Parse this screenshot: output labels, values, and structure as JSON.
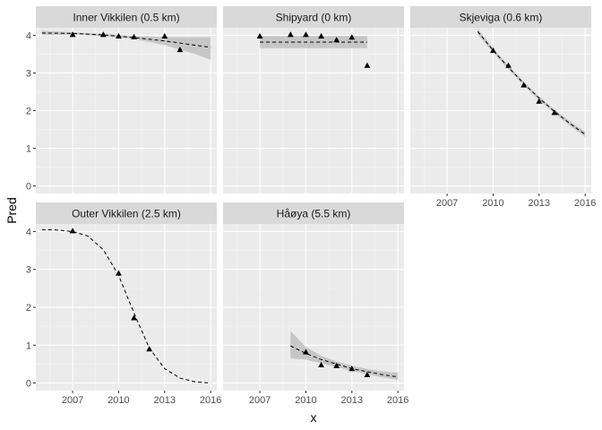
{
  "chart_data": {
    "type": "scatter",
    "facet": "wrap",
    "xlabel": "x",
    "ylabel": "Pred",
    "xlim": [
      2004.6,
      2016.4
    ],
    "ylim": [
      -0.2,
      4.2
    ],
    "x_ticks": [
      2007,
      2010,
      2013,
      2016
    ],
    "x_tick_labels": [
      "2007",
      "2010",
      "2013",
      "2016"
    ],
    "y_ticks": [
      0,
      1,
      2,
      3,
      4
    ],
    "y_tick_labels": [
      "0",
      "1",
      "2",
      "3",
      "4"
    ],
    "colors": {
      "panel_bg": "#ebebeb",
      "strip_bg": "#d9d9d9",
      "grid_major": "#ffffff",
      "ribbon": "#bfbfbf",
      "line": "#000000",
      "point": "#000000"
    },
    "panels": [
      {
        "name": "Inner Vikkilen (0.5 km)",
        "points": [
          [
            2007,
            4.02
          ],
          [
            2009,
            4.02
          ],
          [
            2010,
            3.98
          ],
          [
            2011,
            3.96
          ],
          [
            2013,
            3.98
          ],
          [
            2014,
            3.62
          ]
        ],
        "fit": [
          [
            2005,
            4.06
          ],
          [
            2007,
            4.05
          ],
          [
            2009,
            4.01
          ],
          [
            2011,
            3.94
          ],
          [
            2013,
            3.85
          ],
          [
            2016,
            3.68
          ]
        ],
        "ribbon_upper": [
          [
            2005,
            4.12
          ],
          [
            2007,
            4.08
          ],
          [
            2009,
            4.04
          ],
          [
            2011,
            3.98
          ],
          [
            2013,
            3.95
          ],
          [
            2015,
            3.95
          ],
          [
            2016,
            3.95
          ]
        ],
        "ribbon_lower": [
          [
            2005,
            4.0
          ],
          [
            2007,
            4.02
          ],
          [
            2009,
            3.98
          ],
          [
            2011,
            3.9
          ],
          [
            2013,
            3.74
          ],
          [
            2015,
            3.5
          ],
          [
            2016,
            3.35
          ]
        ]
      },
      {
        "name": "Shipyard (0 km)",
        "points": [
          [
            2007,
            3.98
          ],
          [
            2009,
            4.02
          ],
          [
            2010,
            4.02
          ],
          [
            2011,
            3.98
          ],
          [
            2012,
            3.88
          ],
          [
            2013,
            3.95
          ],
          [
            2014,
            3.2
          ]
        ],
        "fit": [
          [
            2007,
            3.82
          ],
          [
            2014,
            3.82
          ]
        ],
        "ribbon_upper": [
          [
            2007,
            3.98
          ],
          [
            2014,
            3.98
          ]
        ],
        "ribbon_lower": [
          [
            2007,
            3.66
          ],
          [
            2014,
            3.66
          ]
        ]
      },
      {
        "name": "Skjeviga (0.6 km)",
        "points": [
          [
            2010,
            3.6
          ],
          [
            2011,
            3.2
          ],
          [
            2012,
            2.68
          ],
          [
            2013,
            2.25
          ],
          [
            2014,
            1.95
          ]
        ],
        "fit": [
          [
            2009,
            4.1
          ],
          [
            2010,
            3.6
          ],
          [
            2011,
            3.15
          ],
          [
            2012,
            2.72
          ],
          [
            2013,
            2.33
          ],
          [
            2014,
            1.98
          ],
          [
            2015,
            1.66
          ],
          [
            2016,
            1.37
          ]
        ],
        "ribbon_upper": [
          [
            2009,
            4.18
          ],
          [
            2010,
            3.66
          ],
          [
            2011,
            3.2
          ],
          [
            2012,
            2.77
          ],
          [
            2013,
            2.38
          ],
          [
            2014,
            2.03
          ],
          [
            2015,
            1.72
          ],
          [
            2016,
            1.44
          ]
        ],
        "ribbon_lower": [
          [
            2009,
            4.02
          ],
          [
            2010,
            3.54
          ],
          [
            2011,
            3.1
          ],
          [
            2012,
            2.67
          ],
          [
            2013,
            2.28
          ],
          [
            2014,
            1.93
          ],
          [
            2015,
            1.6
          ],
          [
            2016,
            1.3
          ]
        ]
      },
      {
        "name": "Outer Vikkilen (2.5 km)",
        "points": [
          [
            2007,
            4.02
          ],
          [
            2010,
            2.9
          ],
          [
            2011,
            1.72
          ],
          [
            2012,
            0.9
          ]
        ],
        "fit": [
          [
            2005,
            4.05
          ],
          [
            2006,
            4.04
          ],
          [
            2007,
            4.0
          ],
          [
            2008,
            3.88
          ],
          [
            2009,
            3.52
          ],
          [
            2010,
            2.84
          ],
          [
            2011,
            1.85
          ],
          [
            2012,
            0.92
          ],
          [
            2013,
            0.38
          ],
          [
            2014,
            0.13
          ],
          [
            2015,
            0.03
          ],
          [
            2016,
            0.0
          ]
        ],
        "ribbon_upper": [],
        "ribbon_lower": []
      },
      {
        "name": "Håøya (5.5 km)",
        "points": [
          [
            2010,
            0.82
          ],
          [
            2011,
            0.48
          ],
          [
            2012,
            0.46
          ],
          [
            2013,
            0.38
          ],
          [
            2014,
            0.22
          ]
        ],
        "fit": [
          [
            2009,
            0.98
          ],
          [
            2010,
            0.78
          ],
          [
            2011,
            0.62
          ],
          [
            2012,
            0.5
          ],
          [
            2013,
            0.38
          ],
          [
            2014,
            0.3
          ],
          [
            2015,
            0.22
          ],
          [
            2016,
            0.16
          ]
        ],
        "ribbon_upper": [
          [
            2009,
            1.38
          ],
          [
            2010,
            0.95
          ],
          [
            2011,
            0.72
          ],
          [
            2012,
            0.57
          ],
          [
            2013,
            0.46
          ],
          [
            2014,
            0.37
          ],
          [
            2015,
            0.31
          ],
          [
            2016,
            0.27
          ]
        ],
        "ribbon_lower": [
          [
            2009,
            0.65
          ],
          [
            2010,
            0.62
          ],
          [
            2011,
            0.52
          ],
          [
            2012,
            0.42
          ],
          [
            2013,
            0.32
          ],
          [
            2014,
            0.23
          ],
          [
            2015,
            0.15
          ],
          [
            2016,
            0.08
          ]
        ]
      }
    ]
  }
}
